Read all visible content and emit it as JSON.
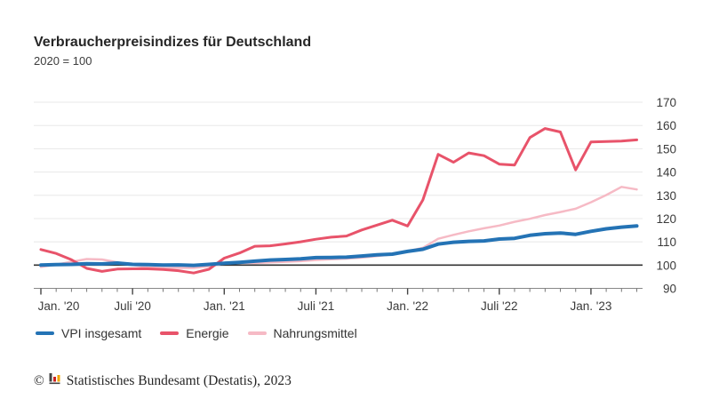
{
  "header": {
    "title": "Verbraucherpreisindizes für Deutschland",
    "subtitle": "2020 = 100"
  },
  "chart_data": {
    "type": "line",
    "title": "Verbraucherpreisindizes für Deutschland",
    "subtitle": "2020 = 100",
    "grid": "horizontal",
    "legend_position": "bottom-left",
    "ylim": [
      90,
      170
    ],
    "y_ticks": [
      170,
      160,
      150,
      140,
      130,
      120,
      110,
      100,
      90
    ],
    "y_axis_side": "right",
    "baseline_value": 100,
    "x_tick_labels": [
      "Jan. '20",
      "Juli '20",
      "Jan. '21",
      "Juli '21",
      "Jan. '22",
      "Juli '22",
      "Jan. '23"
    ],
    "x_tick_month_indices": [
      0,
      6,
      12,
      18,
      24,
      30,
      36
    ],
    "months": [
      "Jan. '20",
      "Feb. '20",
      "Mär. '20",
      "Apr. '20",
      "Mai '20",
      "Juni '20",
      "Juli '20",
      "Aug. '20",
      "Sep. '20",
      "Okt. '20",
      "Nov. '20",
      "Dez. '20",
      "Jan. '21",
      "Feb. '21",
      "Mär. '21",
      "Apr. '21",
      "Mai '21",
      "Juni '21",
      "Juli '21",
      "Aug. '21",
      "Sep. '21",
      "Okt. '21",
      "Nov. '21",
      "Dez. '21",
      "Jan. '22",
      "Feb. '22",
      "Mär. '22",
      "Apr. '22",
      "Mai '22",
      "Juni '22",
      "Juli '22",
      "Aug. '22",
      "Sep. '22",
      "Okt. '22",
      "Nov. '22",
      "Dez. '22",
      "Jan. '23",
      "Feb. '23",
      "Mär. '23",
      "Apr. '23"
    ],
    "series": [
      {
        "name": "VPI insgesamt",
        "color": "#2473b5",
        "stroke_width": 4,
        "values": [
          100.0,
          100.2,
          100.3,
          100.6,
          100.5,
          100.9,
          100.3,
          100.2,
          100.0,
          100.1,
          99.9,
          100.3,
          100.8,
          101.2,
          101.7,
          102.2,
          102.4,
          102.7,
          103.2,
          103.3,
          103.4,
          103.9,
          104.4,
          104.7,
          105.9,
          106.8,
          109.0,
          109.8,
          110.2,
          110.4,
          111.2,
          111.5,
          112.8,
          113.5,
          113.8,
          113.2,
          114.5,
          115.6,
          116.3,
          116.8
        ]
      },
      {
        "name": "Energie",
        "color": "#e8536a",
        "stroke_width": 3,
        "values": [
          106.7,
          105.0,
          102.3,
          98.6,
          97.3,
          98.3,
          98.4,
          98.4,
          98.1,
          97.6,
          96.6,
          98.2,
          103.0,
          105.2,
          108.1,
          108.3,
          109.1,
          110.0,
          111.1,
          112.0,
          112.5,
          115.1,
          117.2,
          119.3,
          116.8,
          128.0,
          147.6,
          144.2,
          148.2,
          147.0,
          143.4,
          143.0,
          154.8,
          158.7,
          157.2,
          140.9,
          152.9,
          153.1,
          153.3,
          153.8
        ]
      },
      {
        "name": "Nahrungsmittel",
        "color": "#f6bac5",
        "stroke_width": 2.5,
        "values": [
          99.2,
          100.2,
          101.4,
          102.6,
          102.4,
          101.2,
          100.1,
          99.0,
          98.7,
          98.8,
          98.8,
          99.5,
          100.6,
          101.0,
          100.9,
          101.2,
          101.4,
          101.7,
          102.2,
          102.5,
          102.8,
          103.2,
          103.9,
          104.6,
          105.9,
          107.4,
          111.3,
          113.0,
          114.5,
          115.8,
          117.0,
          118.6,
          119.9,
          121.5,
          122.8,
          124.2,
          127.0,
          130.1,
          133.6,
          132.5
        ]
      }
    ],
    "colors": {
      "gridline": "#e8e8e8",
      "baseline": "#333333",
      "axis": "#888888",
      "tick_minor": "#777777",
      "tick_major": "#444444"
    }
  },
  "legend": {
    "items": [
      {
        "label": "VPI insgesamt",
        "color": "#2473b5"
      },
      {
        "label": "Energie",
        "color": "#e8536a"
      },
      {
        "label": "Nahrungsmittel",
        "color": "#f6bac5"
      }
    ]
  },
  "footer": {
    "copyright": "©",
    "source": "Statistisches Bundesamt (Destatis), 2023",
    "logo": "destatis-bar-chart-logo",
    "logo_colors": [
      "#444444",
      "#cc2222",
      "#f0a500"
    ]
  }
}
